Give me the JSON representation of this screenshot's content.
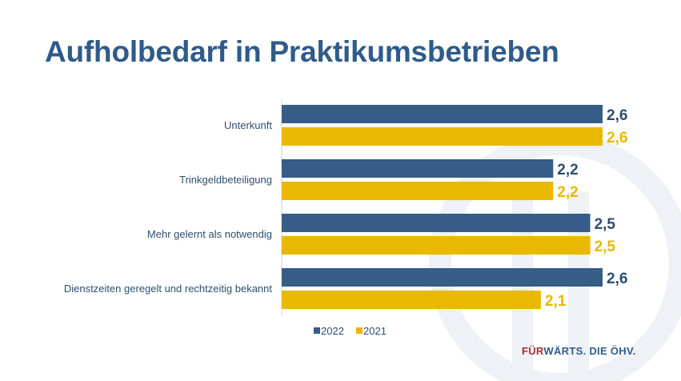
{
  "title": "Aufholbedarf in Praktikumsbetrieben",
  "chart_data": {
    "type": "bar",
    "orientation": "horizontal",
    "categories": [
      "Unterkunft",
      "Trinkgeldbeteiligung",
      "Mehr gelernt als notwendig",
      "Dienstzeiten geregelt und rechtzeitig bekannt"
    ],
    "series": [
      {
        "name": "2022",
        "color": "#355d87",
        "values": [
          2.6,
          2.2,
          2.5,
          2.6
        ],
        "labels": [
          "2,6",
          "2,2",
          "2,5",
          "2,6"
        ]
      },
      {
        "name": "2021",
        "color": "#e9b800",
        "values": [
          2.6,
          2.2,
          2.5,
          2.1
        ],
        "labels": [
          "2,6",
          "2,2",
          "2,5",
          "2,1"
        ]
      }
    ],
    "xlim": [
      0,
      2.6
    ],
    "grid": false,
    "legend": "bottom"
  },
  "footer": {
    "logo_red": "FÜR",
    "logo_rest": "WÄRTS. DIE ÖHV."
  }
}
